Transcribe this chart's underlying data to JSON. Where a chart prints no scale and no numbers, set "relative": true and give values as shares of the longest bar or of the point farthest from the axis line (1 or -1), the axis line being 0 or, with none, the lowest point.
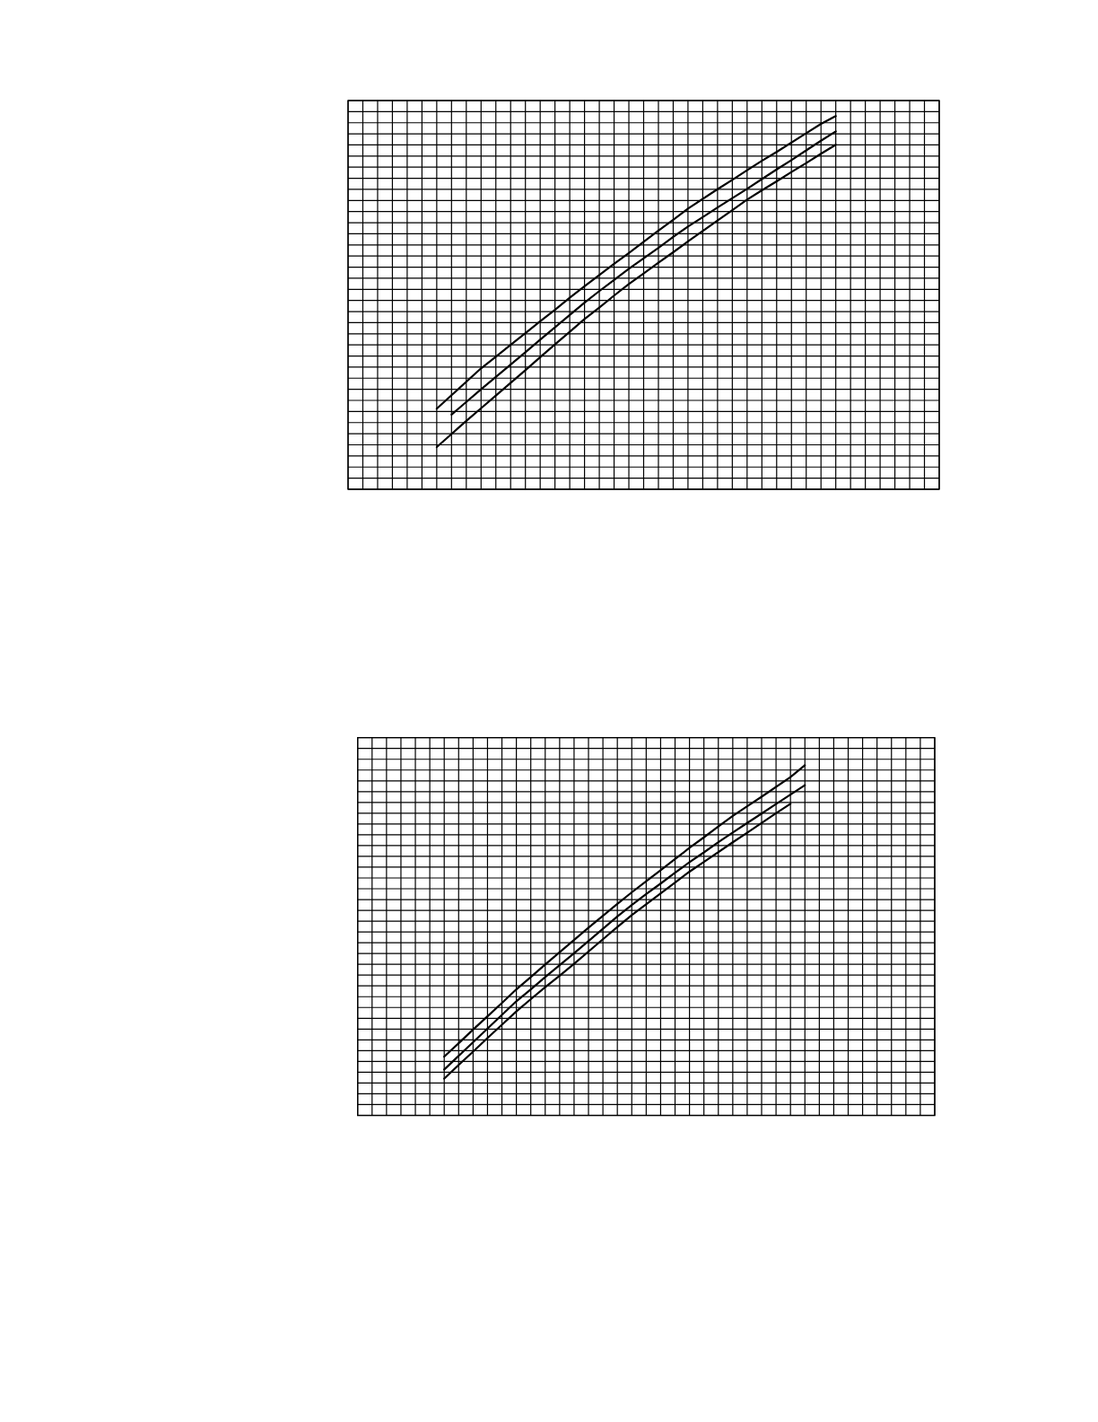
{
  "chart_data": [
    {
      "type": "line",
      "relative": true,
      "grid": true,
      "categories": [
        null,
        null,
        null,
        null,
        null,
        null,
        null,
        null,
        null,
        null,
        null,
        null,
        null,
        null,
        null,
        null,
        null,
        null,
        null,
        null,
        null,
        null,
        null,
        null,
        null,
        null,
        null,
        null,
        null,
        null,
        null,
        null,
        null,
        null,
        null,
        null,
        null,
        null,
        null,
        null,
        null
      ],
      "series": [
        {
          "color": "#000000",
          "values": [
            null,
            null,
            null,
            null,
            null,
            null,
            0.216,
            0.252,
            0.288,
            0.324,
            0.355,
            0.387,
            0.418,
            0.45,
            0.481,
            0.513,
            0.544,
            0.574,
            0.604,
            0.633,
            0.663,
            0.693,
            0.722,
            0.752,
            0.778,
            0.804,
            0.829,
            0.855,
            0.88,
            0.904,
            0.929,
            0.954,
            0.979,
            1.0,
            null,
            null,
            null,
            null,
            null,
            null,
            null
          ]
        },
        {
          "color": "#000000",
          "values": [
            null,
            null,
            null,
            null,
            null,
            null,
            null,
            0.2,
            0.234,
            0.268,
            0.301,
            0.334,
            0.367,
            0.401,
            0.434,
            0.467,
            0.5,
            0.531,
            0.561,
            0.591,
            0.619,
            0.647,
            0.676,
            0.704,
            0.729,
            0.755,
            0.78,
            0.805,
            0.831,
            0.857,
            0.882,
            0.908,
            0.934,
            0.959,
            null,
            null,
            null,
            null,
            null,
            null,
            null
          ]
        },
        {
          "color": "#000000",
          "values": [
            null,
            null,
            null,
            null,
            null,
            null,
            0.113,
            0.148,
            0.183,
            0.217,
            0.251,
            0.285,
            0.319,
            0.354,
            0.388,
            0.422,
            0.456,
            0.487,
            0.519,
            0.55,
            0.578,
            0.607,
            0.635,
            0.664,
            0.692,
            0.72,
            0.748,
            0.776,
            0.801,
            0.825,
            0.85,
            0.874,
            0.899,
            0.923,
            null,
            null,
            null,
            null,
            null,
            null,
            null
          ]
        }
      ]
    },
    {
      "type": "line",
      "relative": true,
      "grid": true,
      "categories": [
        null,
        null,
        null,
        null,
        null,
        null,
        null,
        null,
        null,
        null,
        null,
        null,
        null,
        null,
        null,
        null,
        null,
        null,
        null,
        null,
        null,
        null,
        null,
        null,
        null,
        null,
        null,
        null,
        null,
        null,
        null,
        null,
        null,
        null,
        null,
        null,
        null,
        null,
        null,
        null,
        null
      ],
      "series": [
        {
          "color": "#000000",
          "values": [
            null,
            null,
            null,
            null,
            null,
            null,
            0.168,
            0.206,
            0.245,
            0.283,
            0.321,
            0.36,
            0.395,
            0.431,
            0.466,
            0.501,
            0.536,
            0.57,
            0.604,
            0.637,
            0.669,
            0.7,
            0.732,
            0.764,
            0.794,
            0.825,
            0.855,
            0.883,
            0.91,
            0.938,
            0.966,
            1.0,
            null,
            null,
            null,
            null,
            null,
            null,
            null,
            null,
            null
          ]
        },
        {
          "color": "#000000",
          "values": [
            null,
            null,
            null,
            null,
            null,
            null,
            0.131,
            0.17,
            0.209,
            0.248,
            0.287,
            0.326,
            0.36,
            0.395,
            0.429,
            0.463,
            0.498,
            0.533,
            0.568,
            0.601,
            0.632,
            0.662,
            0.693,
            0.723,
            0.751,
            0.78,
            0.808,
            0.835,
            0.862,
            0.889,
            0.916,
            0.943,
            null,
            null,
            null,
            null,
            null,
            null,
            null,
            null,
            null
          ]
        },
        {
          "color": "#000000",
          "values": [
            null,
            null,
            null,
            null,
            null,
            null,
            0.105,
            0.144,
            0.182,
            0.221,
            0.259,
            0.297,
            0.332,
            0.366,
            0.399,
            0.433,
            0.468,
            0.503,
            0.538,
            0.572,
            0.603,
            0.634,
            0.665,
            0.696,
            0.724,
            0.752,
            0.78,
            0.807,
            0.835,
            0.863,
            0.89,
            null,
            null,
            null,
            null,
            null,
            null,
            null,
            null,
            null,
            null
          ]
        }
      ]
    }
  ]
}
